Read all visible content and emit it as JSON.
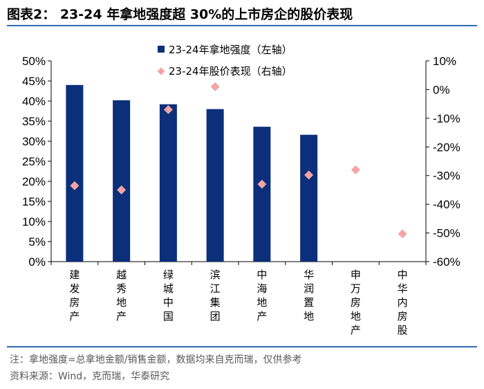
{
  "figure": {
    "title": "图表2： 23-24 年拿地强度超 30%的上市房企的股价表现",
    "note": "注：拿地强度=总拿地金额/销售金额，数据均来自克而瑞，仅供参考",
    "source": "资料来源：Wind，克而瑞，华泰研究"
  },
  "colors": {
    "bar": "#0b2f7a",
    "marker": "#f4a4a4",
    "rule": "#2f6ab0"
  },
  "chart_data": {
    "type": "bar",
    "categories": [
      "建发房产",
      "越秀地产",
      "绿城中国",
      "滨江集团",
      "中海地产",
      "华润置地",
      "申万房地产",
      "中华内房股"
    ],
    "series": [
      {
        "name": "23-24年拿地强度（左轴）",
        "kind": "bar",
        "axis": "left",
        "values": [
          44,
          40.2,
          39.2,
          38,
          33.6,
          31.6,
          null,
          null
        ]
      },
      {
        "name": "23-24年股价表现（右轴）",
        "kind": "marker",
        "axis": "right",
        "values": [
          -33.5,
          -35,
          -7,
          1,
          -33,
          -29.8,
          -28,
          -50.3
        ]
      }
    ],
    "left_axis": {
      "min": 0,
      "max": 50,
      "step": 5,
      "unit": "%",
      "tick_labels": [
        "0%",
        "5%",
        "10%",
        "15%",
        "20%",
        "25%",
        "30%",
        "35%",
        "40%",
        "45%",
        "50%"
      ]
    },
    "right_axis": {
      "min": -60,
      "max": 10,
      "step": 10,
      "unit": "%",
      "tick_labels": [
        "-60%",
        "-50%",
        "-40%",
        "-30%",
        "-20%",
        "-10%",
        "0%",
        "10%"
      ]
    },
    "legend_position": "top-center",
    "gridlines": false
  }
}
